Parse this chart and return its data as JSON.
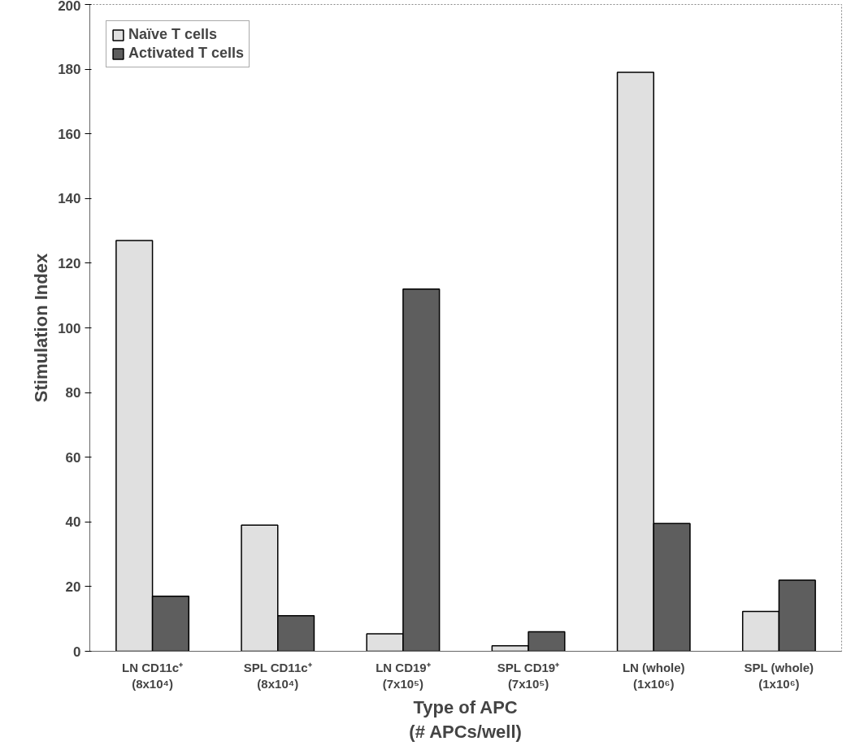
{
  "chart_data": {
    "type": "bar",
    "xlabel": "Type of APC\n(# APCs/well)",
    "ylabel": "Stimulation Index",
    "categories": [
      "LN CD11c⁺\n(8x10⁴)",
      "SPL CD11c⁺\n(8x10⁴)",
      "LN CD19⁺\n(7x10⁵)",
      "SPL CD19⁺\n(7x10⁵)",
      "LN (whole)\n(1x10⁶)",
      "SPL (whole)\n(1x10⁶)"
    ],
    "series": [
      {
        "name": "Naïve T cells",
        "color": "#e0e0e0",
        "values": [
          127,
          39,
          5.4,
          1.7,
          179,
          12.3
        ]
      },
      {
        "name": "Activated T cells",
        "color": "#5e5e5e",
        "values": [
          17,
          11,
          112,
          6,
          39.5,
          22
        ]
      }
    ],
    "ylim": [
      0,
      200
    ],
    "yticks": [
      0,
      20,
      40,
      60,
      80,
      100,
      120,
      140,
      160,
      180,
      200
    ],
    "grid": false,
    "legend": "top left"
  }
}
